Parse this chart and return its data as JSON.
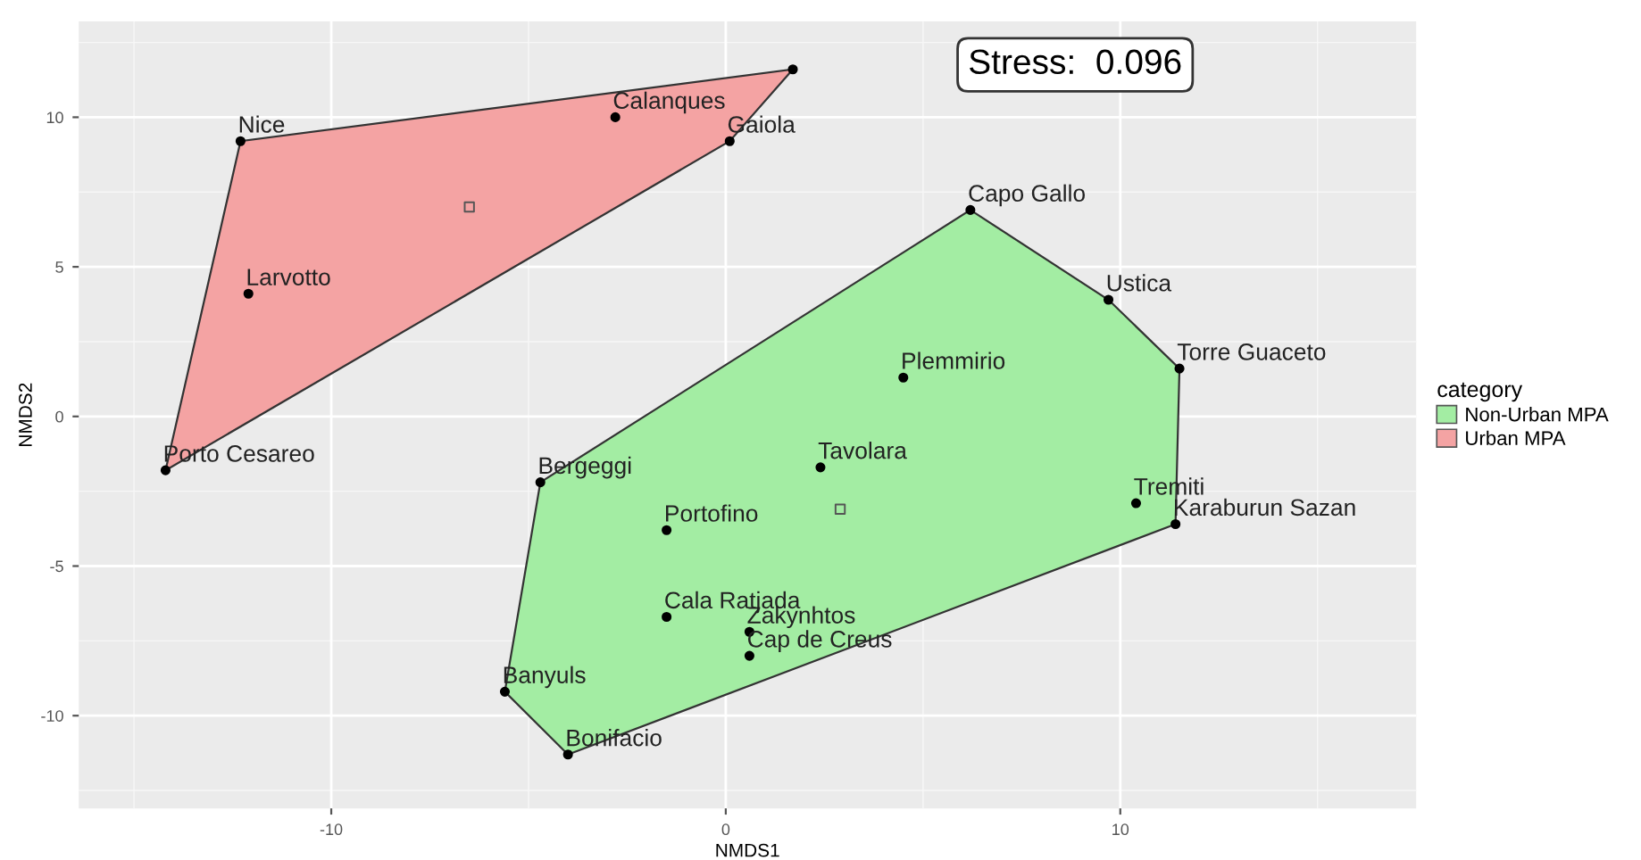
{
  "chart_data": {
    "type": "scatter",
    "xlabel": "NMDS1",
    "ylabel": "NMDS2",
    "legend_title": "category",
    "legend": "right",
    "grid": true,
    "marker": "circle",
    "xlim": [
      -16.4,
      17.5
    ],
    "ylim": [
      -13.1,
      13.2
    ],
    "xticks": [
      -10,
      0,
      10
    ],
    "yticks": [
      -10,
      -5,
      0,
      5,
      10
    ],
    "series": [
      {
        "name": "Non-Urban MPA",
        "type": "area",
        "marker": "none",
        "color": "#a3eda3",
        "x": [
          6.2,
          9.7,
          11.5,
          11.4,
          -4.0,
          -5.6,
          -4.7
        ],
        "values": [
          6.9,
          3.9,
          1.6,
          -3.6,
          -11.3,
          -9.2,
          -2.2
        ]
      },
      {
        "name": "Urban MPA",
        "type": "area",
        "marker": "none",
        "color": "#f4a3a3",
        "x": [
          1.7,
          0.1,
          -14.2,
          -12.3
        ],
        "values": [
          11.6,
          9.2,
          -1.8,
          9.2
        ]
      },
      {
        "color": "#000000",
        "x": [
          -4.7,
          -1.5,
          -1.5,
          0.6,
          0.6,
          -5.6,
          -4.0,
          2.4,
          4.5,
          6.2,
          9.7,
          11.5,
          10.4,
          11.4
        ],
        "values": [
          -2.2,
          -3.8,
          -6.7,
          -7.2,
          -8.0,
          -9.2,
          -11.3,
          -1.7,
          1.3,
          6.9,
          3.9,
          1.6,
          -2.9,
          -3.6
        ]
      },
      {
        "color": "#000000",
        "x": [
          -12.3,
          -2.8,
          0.1,
          1.7,
          -12.1,
          -14.2
        ],
        "values": [
          9.2,
          10.0,
          9.2,
          11.6,
          4.1,
          -1.8
        ]
      },
      {
        "color": "#555555",
        "marker": "square",
        "x": [
          2.9
        ],
        "values": [
          -3.1
        ]
      },
      {
        "color": "#555555",
        "marker": "square",
        "x": [
          -6.5
        ],
        "values": [
          7.0
        ]
      }
    ],
    "annotations": [
      {
        "text": "Bergeggi",
        "x": -4.7,
        "y": -2.2
      },
      {
        "text": "Portofino",
        "x": -1.5,
        "y": -3.8
      },
      {
        "text": "Cala Ratjada",
        "x": -1.5,
        "y": -6.7
      },
      {
        "text": "Zakynhtos",
        "x": 0.6,
        "y": -7.2
      },
      {
        "text": "Cap de Creus",
        "x": 0.6,
        "y": -8.0
      },
      {
        "text": "Banyuls",
        "x": -5.6,
        "y": -9.2
      },
      {
        "text": "Bonifacio",
        "x": -4.0,
        "y": -11.3
      },
      {
        "text": "Tavolara",
        "x": 2.4,
        "y": -1.7
      },
      {
        "text": "Plemmirio",
        "x": 4.5,
        "y": 1.3
      },
      {
        "text": "Capo Gallo",
        "x": 6.2,
        "y": 6.9
      },
      {
        "text": "Ustica",
        "x": 9.7,
        "y": 3.9
      },
      {
        "text": "Torre Guaceto",
        "x": 11.5,
        "y": 1.6
      },
      {
        "text": "Tremiti",
        "x": 10.4,
        "y": -2.9
      },
      {
        "text": "Karaburun Sazan",
        "x": 11.4,
        "y": -3.6
      },
      {
        "text": "Nice",
        "x": -12.3,
        "y": 9.2
      },
      {
        "text": "Calanques",
        "x": -2.8,
        "y": 10.0
      },
      {
        "text": "Gaiola",
        "x": 0.1,
        "y": 9.2
      },
      {
        "text": "Larvotto",
        "x": -12.1,
        "y": 4.1
      },
      {
        "text": "Porto Cesareo",
        "x": -14.2,
        "y": -1.8
      },
      "Stress:  0.096"
    ]
  }
}
